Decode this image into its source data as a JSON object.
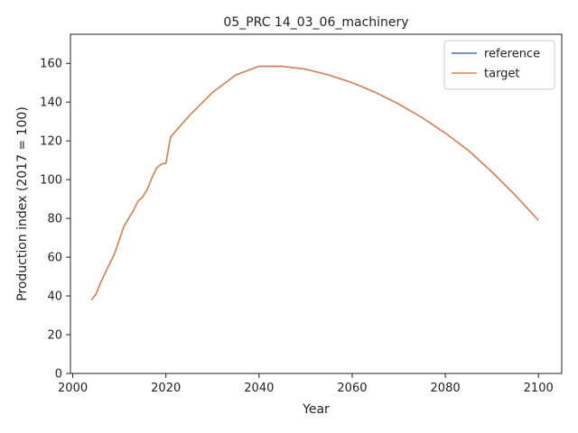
{
  "chart_data": {
    "type": "line",
    "title": "05_PRC 14_03_06_machinery",
    "xlabel": "Year",
    "ylabel": "Production index (2017 = 100)",
    "xlim": [
      1999.5,
      2105
    ],
    "ylim": [
      0,
      175
    ],
    "xticks": [
      2000,
      2020,
      2040,
      2060,
      2080,
      2100
    ],
    "yticks": [
      0,
      20,
      40,
      60,
      80,
      100,
      120,
      140,
      160
    ],
    "grid": false,
    "legend_position": "top-right",
    "series": [
      {
        "name": "reference",
        "color": "#4c72b0",
        "x": [
          2004,
          2005,
          2006,
          2007,
          2008,
          2009,
          2010,
          2011,
          2012,
          2013,
          2014,
          2015,
          2016,
          2017,
          2018,
          2019,
          2020,
          2021,
          2025,
          2030,
          2035,
          2040,
          2045,
          2050,
          2055,
          2060,
          2065,
          2070,
          2075,
          2080,
          2085,
          2090,
          2095,
          2100
        ],
        "y": [
          38,
          41,
          47,
          52,
          57,
          62,
          69,
          76,
          80,
          84,
          89,
          91,
          95,
          101,
          106,
          108,
          108.5,
          122,
          133,
          145,
          154,
          158.5,
          158.5,
          157,
          154,
          150,
          145,
          139,
          132,
          124,
          115,
          104,
          92,
          79
        ]
      },
      {
        "name": "target",
        "color": "#dd8452",
        "x": [
          2004,
          2005,
          2006,
          2007,
          2008,
          2009,
          2010,
          2011,
          2012,
          2013,
          2014,
          2015,
          2016,
          2017,
          2018,
          2019,
          2020,
          2021,
          2025,
          2030,
          2035,
          2040,
          2045,
          2050,
          2055,
          2060,
          2065,
          2070,
          2075,
          2080,
          2085,
          2090,
          2095,
          2100
        ],
        "y": [
          38,
          41,
          47,
          52,
          57,
          62,
          69,
          76,
          80,
          84,
          89,
          91,
          95,
          101,
          106,
          108,
          108.5,
          122,
          133,
          145,
          154,
          158.5,
          158.5,
          157,
          154,
          150,
          145,
          139,
          132,
          124,
          115,
          104,
          92,
          79
        ]
      }
    ]
  }
}
